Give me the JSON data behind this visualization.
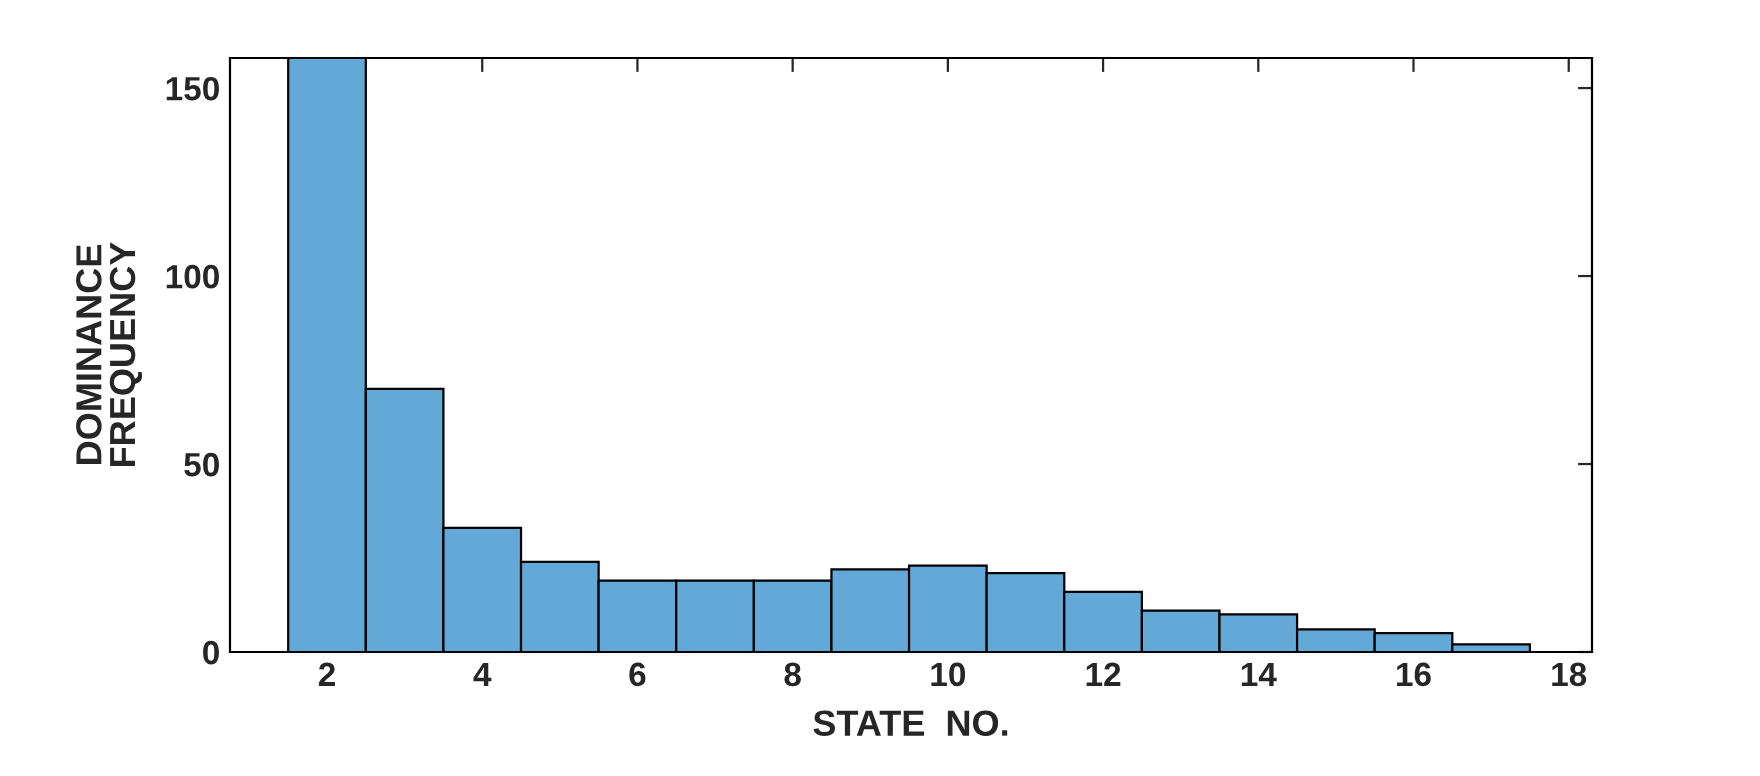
{
  "chart_data": {
    "type": "histogram",
    "xlabel": "STATE  NO.",
    "ylabel": "DOMINANCE\nFREQUENCY",
    "bins": [
      1.5,
      2.5,
      3.5,
      4.5,
      5.5,
      6.5,
      7.5,
      8.5,
      9.5,
      10.5,
      11.5,
      12.5,
      13.5,
      14.5,
      15.5,
      16.5,
      17.5
    ],
    "values": [
      158,
      70,
      33,
      24,
      19,
      19,
      19,
      22,
      23,
      21,
      16,
      11,
      10,
      6,
      5,
      2
    ],
    "color": "#62a9d8",
    "xlim": [
      0.75,
      18.3
    ],
    "xticks": [
      2,
      4,
      6,
      8,
      10,
      12,
      14,
      16,
      18
    ],
    "ylim": [
      0,
      158
    ],
    "yticks": [
      0,
      50,
      100,
      150
    ],
    "grid": false
  }
}
